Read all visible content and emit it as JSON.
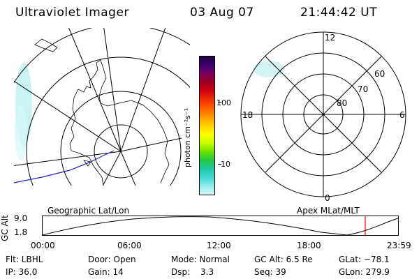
{
  "header": {
    "instrument": "Ultraviolet Imager",
    "date": "03 Aug 07",
    "time": "21:44:42 UT"
  },
  "geographic_panel": {
    "caption": "Geographic Lat/Lon"
  },
  "apex_panel": {
    "caption": "Apex MLat/MLT",
    "mlt_labels": {
      "top": "12",
      "bottom": "0",
      "left": "18",
      "right": "6"
    },
    "mlat_labels": [
      "60",
      "70",
      "80"
    ]
  },
  "colorbar": {
    "unit": "photon cm⁻²s⁻¹",
    "tick_100": "100",
    "tick_10": "10",
    "colors": [
      "#200040",
      "#400070",
      "#7a0060",
      "#a00020",
      "#d00010",
      "#f03000",
      "#ff6000",
      "#ff9a00",
      "#ffd000",
      "#ffff00",
      "#c8ff00",
      "#70e000",
      "#20c840",
      "#20c8a0",
      "#40d8d8",
      "#90ecec",
      "#d8f8f8"
    ]
  },
  "timeline": {
    "axis_label": "GC Alt",
    "y_top": "9.0",
    "y_bottom": "1.8",
    "ticks": [
      "00:00",
      "06:00",
      "12:00",
      "18:00",
      "23:59"
    ],
    "marker_time": "21:44",
    "marker_color": "#e00000"
  },
  "status": {
    "flt": "Flt: LBHL",
    "ip": "IP: 36.0",
    "door": "Door: Open",
    "gain": "Gain: 14",
    "mode": "Mode: Normal",
    "dsp_label": "Dsp:",
    "dsp_value": "3.3",
    "gcalt": "GC Alt: 6.5 Re",
    "seq": "Seq: 39",
    "glat": "GLat: −78.1",
    "glon": "GLon: 279.9"
  }
}
